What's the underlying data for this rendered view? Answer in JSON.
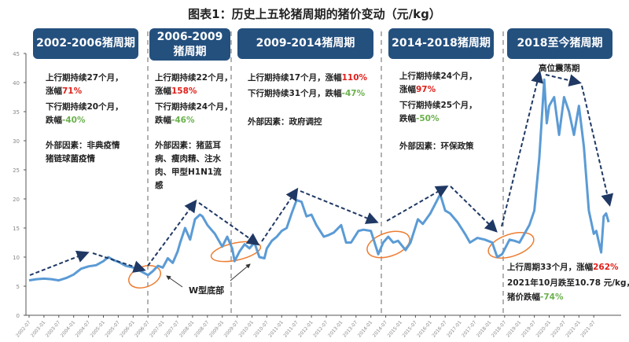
{
  "chart_data": {
    "type": "line",
    "title": "图表1：历史上五轮猪周期的猪价变动（元/kg）",
    "xlabel": "",
    "ylabel": "",
    "ylim": [
      0,
      45
    ],
    "yticks": [
      0,
      5,
      10,
      15,
      20,
      25,
      30,
      35,
      40,
      45
    ],
    "xticks": [
      "2002-07",
      "2003-01",
      "2003-07",
      "2004-01",
      "2004-07",
      "2005-01",
      "2005-07",
      "2006-01",
      "2006-07",
      "2007-01",
      "2007-07",
      "2008-01",
      "2008-07",
      "2009-01",
      "2009-07",
      "2010-01",
      "2010-07",
      "2011-01",
      "2011-07",
      "2012-01",
      "2012-07",
      "2013-01",
      "2013-07",
      "2014-01",
      "2014-07",
      "2015-01",
      "2015-07",
      "2016-01",
      "2016-07",
      "2017-01",
      "2017-07",
      "2018-01",
      "2018-07",
      "2019-01",
      "2019-07",
      "2020-01",
      "2020-07",
      "2021-01",
      "2021-07"
    ],
    "grid": false,
    "line_color": "#5b9bd5",
    "series": [
      {
        "x": [
          "2002-07",
          "2002-10",
          "2003-01",
          "2003-04",
          "2003-07",
          "2003-10",
          "2004-01",
          "2004-04",
          "2004-07",
          "2004-10",
          "2005-01",
          "2005-03",
          "2005-05",
          "2005-07",
          "2005-10",
          "2006-01",
          "2006-04",
          "2006-07",
          "2006-09",
          "2006-11",
          "2007-01",
          "2007-03",
          "2007-05",
          "2007-07",
          "2007-08",
          "2007-10",
          "2007-12",
          "2008-02",
          "2008-04",
          "2008-05",
          "2008-07",
          "2008-10",
          "2009-01",
          "2009-03",
          "2009-05",
          "2009-06",
          "2009-08",
          "2009-10",
          "2009-12",
          "2010-02",
          "2010-04",
          "2010-06",
          "2010-07",
          "2010-09",
          "2010-11",
          "2011-01",
          "2011-03",
          "2011-05",
          "2011-07",
          "2011-09",
          "2011-11",
          "2012-01",
          "2012-03",
          "2012-06",
          "2012-08",
          "2012-10",
          "2013-01",
          "2013-03",
          "2013-05",
          "2013-08",
          "2013-10",
          "2014-01",
          "2014-04",
          "2014-06",
          "2014-08",
          "2014-10",
          "2014-12",
          "2015-03",
          "2015-05",
          "2015-08",
          "2015-10",
          "2016-01",
          "2016-05",
          "2016-07",
          "2016-09",
          "2016-12",
          "2017-03",
          "2017-05",
          "2017-08",
          "2017-11",
          "2018-02",
          "2018-04",
          "2018-06",
          "2018-09",
          "2018-11",
          "2019-01",
          "2019-03",
          "2019-05",
          "2019-07",
          "2019-09",
          "2019-11",
          "2019-12",
          "2020-01",
          "2020-03",
          "2020-05",
          "2020-07",
          "2020-09",
          "2020-11",
          "2021-01",
          "2021-03",
          "2021-05",
          "2021-07",
          "2021-08",
          "2021-10",
          "2021-11",
          "2021-12",
          "2022-01"
        ],
        "y": [
          6.0,
          6.2,
          6.3,
          6.2,
          6.0,
          6.4,
          7.0,
          8.0,
          8.4,
          8.6,
          9.3,
          10.0,
          9.5,
          9.2,
          8.5,
          8.2,
          7.6,
          6.9,
          7.6,
          8.5,
          8.2,
          9.8,
          9.0,
          11.0,
          12.5,
          15.0,
          13.0,
          16.5,
          17.3,
          17.0,
          15.5,
          14.0,
          11.8,
          13.5,
          11.5,
          9.3,
          11.0,
          12.2,
          11.5,
          12.5,
          10.0,
          9.8,
          11.5,
          12.8,
          13.5,
          14.5,
          15.0,
          17.5,
          19.8,
          19.5,
          17.0,
          17.3,
          15.5,
          13.5,
          13.8,
          14.2,
          15.5,
          12.5,
          12.5,
          14.5,
          14.7,
          14.5,
          10.5,
          12.5,
          13.5,
          12.5,
          12.8,
          11.2,
          12.5,
          16.5,
          15.7,
          17.5,
          20.8,
          18.0,
          17.5,
          16.0,
          14.0,
          12.5,
          13.3,
          13.0,
          12.5,
          10.0,
          10.5,
          13.0,
          12.8,
          12.5,
          14.0,
          15.5,
          18.0,
          27.0,
          40.5,
          33.0,
          36.0,
          37.5,
          31.0,
          37.5,
          35.0,
          31.0,
          36.0,
          29.0,
          18.0,
          14.0,
          14.5,
          10.8,
          17.0,
          17.5,
          16.0
        ]
      }
    ],
    "annotations": {
      "w_bottom": "W型底部",
      "high_oscillation": "高位震荡期"
    }
  },
  "cycles": [
    {
      "header": "2002-2006猪周期",
      "up": "上行期持续27个月，",
      "up_label": "涨幅",
      "up_pct": "71%",
      "down": "下行期持续20个月，",
      "down_label": "跌幅",
      "down_pct": "-40%",
      "factor": "外部因素：非典疫情",
      "factor2": "猪链球菌疫情"
    },
    {
      "header1": "2006-2009",
      "header2": "猪周期",
      "up": "上行期持续22个月，",
      "up_label": "涨幅",
      "up_pct": "158%",
      "down": "下行期持续24个月，",
      "down_label": "跌幅",
      "down_pct": "-46%",
      "factor": "外部因素：猪蓝耳",
      "factor2": "病、瘦肉精、注水",
      "factor3": "肉、甲型H1N1流",
      "factor4": "感"
    },
    {
      "header": "2009-2014猪周期",
      "up": "上行期持续17个月，涨幅",
      "up_pct": "110%",
      "down": "下行期持续31个月，跌幅",
      "down_pct": "-47%",
      "factor": "外部因素：政府调控"
    },
    {
      "header": "2014-2018猪周期",
      "up": "上行期持续24个月，",
      "up_label": "涨幅",
      "up_pct": "97%",
      "down": "下行期持续25个月，",
      "down_label": "跌幅",
      "down_pct": "-50%",
      "factor": "外部因素：环保政策"
    },
    {
      "header": "2018至今猪周期",
      "up": "上行周期33个月，涨幅",
      "up_pct": "262%",
      "down": "2021年10月跌至10.78 元/kg，",
      "down2": "猪价跌幅",
      "down_pct": "-74%"
    }
  ]
}
